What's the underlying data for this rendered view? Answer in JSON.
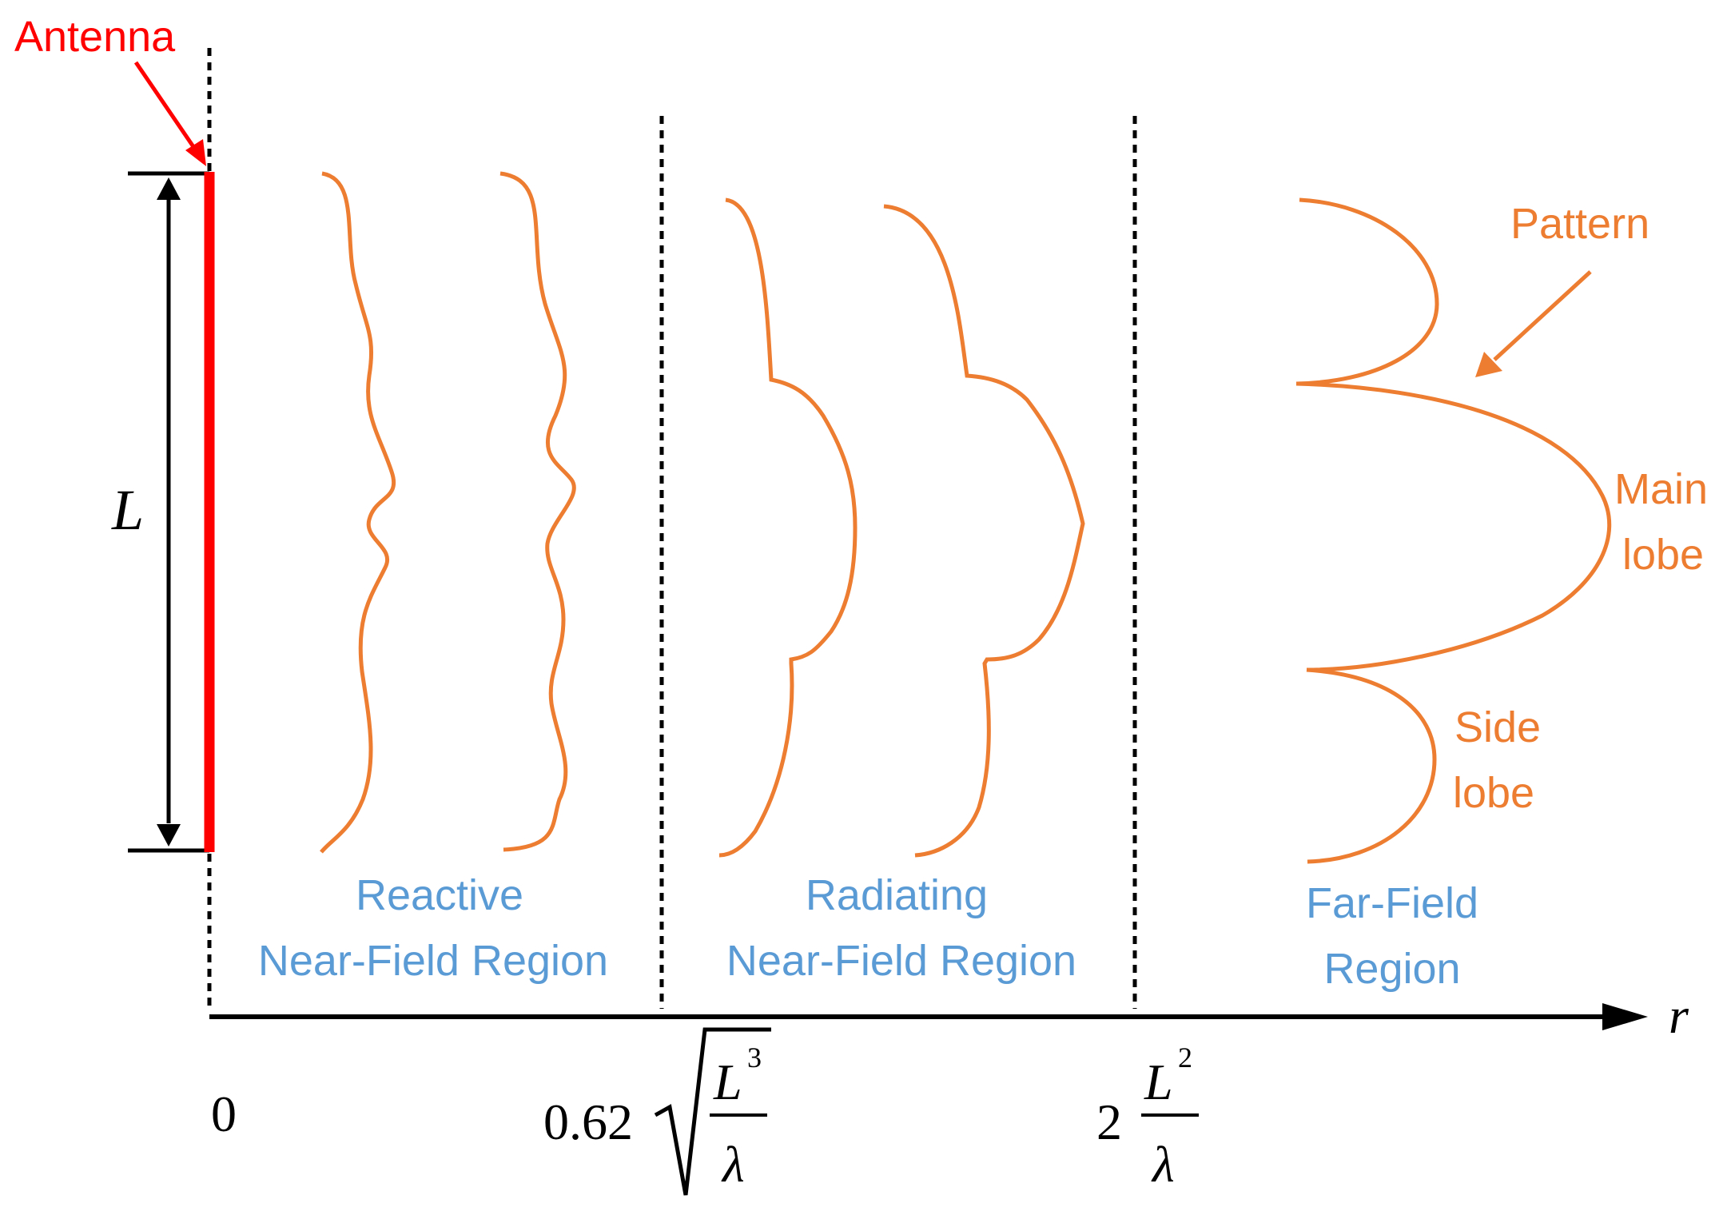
{
  "antenna_label": "Antenna",
  "length_label": "L",
  "regions": {
    "reactive": {
      "line1": "Reactive",
      "line2": "Near-Field Region"
    },
    "radiating": {
      "line1": "Radiating",
      "line2": "Near-Field Region"
    },
    "far": {
      "line1": "Far-Field",
      "line2": "Region"
    }
  },
  "pattern_label": "Pattern",
  "main_lobe": {
    "line1": "Main",
    "line2": "lobe"
  },
  "side_lobe": {
    "line1": "Side",
    "line2": "lobe"
  },
  "axis": {
    "label": "r",
    "tick0": "0",
    "tick1": {
      "coef": "0.62",
      "num": "L",
      "num_exp": "3",
      "den": "λ"
    },
    "tick2": {
      "coef": "2",
      "num": "L",
      "num_exp": "2",
      "den": "λ"
    }
  },
  "colors": {
    "antenna": "#ff0000",
    "region_text": "#5b9bd5",
    "pattern": "#ed7d31",
    "axis": "#000000"
  }
}
